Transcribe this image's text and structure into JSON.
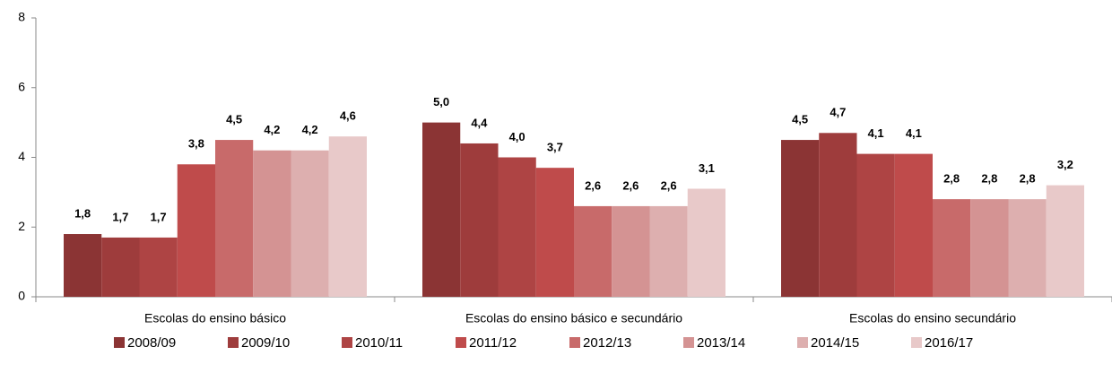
{
  "chart_data": {
    "type": "bar",
    "categories": [
      "Escolas do ensino básico",
      "Escolas do ensino básico e secundário",
      "Escolas do ensino secundário"
    ],
    "series": [
      {
        "name": "2008/09",
        "color": "#8b3434",
        "values": [
          1.8,
          5.0,
          4.5
        ],
        "value_labels": [
          "1,8",
          "5,0",
          "4,5"
        ]
      },
      {
        "name": "2009/10",
        "color": "#9e3c3c",
        "values": [
          1.7,
          4.4,
          4.7
        ],
        "value_labels": [
          "1,7",
          "4,4",
          "4,7"
        ]
      },
      {
        "name": "2010/11",
        "color": "#ae4444",
        "values": [
          1.7,
          4.0,
          4.1
        ],
        "value_labels": [
          "1,7",
          "4,0",
          "4,1"
        ]
      },
      {
        "name": "2011/12",
        "color": "#bf4b4b",
        "values": [
          3.8,
          3.7,
          4.1
        ],
        "value_labels": [
          "3,8",
          "3,7",
          "4,1"
        ]
      },
      {
        "name": "2012/13",
        "color": "#c86a6a",
        "values": [
          4.5,
          2.6,
          2.8
        ],
        "value_labels": [
          "4,5",
          "2,6",
          "2,8"
        ]
      },
      {
        "name": "2013/14",
        "color": "#d49393",
        "values": [
          4.2,
          2.6,
          2.8
        ],
        "value_labels": [
          "4,2",
          "2,6",
          "2,8"
        ]
      },
      {
        "name": "2014/15",
        "color": "#ddafaf",
        "values": [
          4.2,
          2.6,
          2.8
        ],
        "value_labels": [
          "4,2",
          "2,6",
          "2,8"
        ]
      },
      {
        "name": "2016/17",
        "color": "#e8c9c9",
        "values": [
          4.6,
          3.1,
          3.2
        ],
        "value_labels": [
          "4,6",
          "3,1",
          "3,2"
        ]
      }
    ],
    "ylim": [
      0,
      8
    ],
    "yticks": [
      0,
      2,
      4,
      6,
      8
    ],
    "grid": false,
    "legend": "bottom"
  }
}
